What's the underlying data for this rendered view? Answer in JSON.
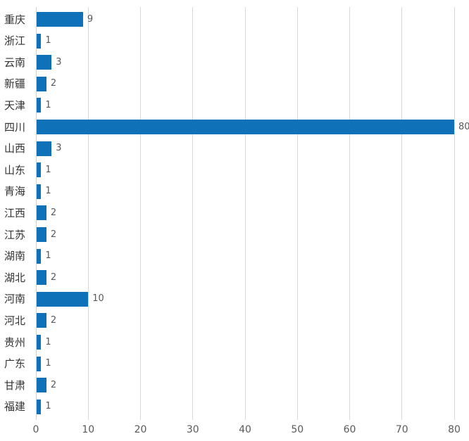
{
  "chart_data": {
    "type": "bar",
    "orientation": "horizontal",
    "title": "",
    "xlabel": "",
    "ylabel": "",
    "categories": [
      "重庆",
      "浙江",
      "云南",
      "新疆",
      "天津",
      "四川",
      "山西",
      "山东",
      "青海",
      "江西",
      "江苏",
      "湖南",
      "湖北",
      "河南",
      "河北",
      "贵州",
      "广东",
      "甘肃",
      "福建"
    ],
    "values": [
      9,
      1,
      3,
      2,
      1,
      80,
      3,
      1,
      1,
      2,
      2,
      1,
      2,
      10,
      2,
      1,
      1,
      2,
      1
    ],
    "data_labels": [
      "9",
      "1",
      "3",
      "2",
      "1",
      "80",
      "3",
      "1",
      "1",
      "2",
      "2",
      "1",
      "2",
      "10",
      "2",
      "1",
      "1",
      "2",
      "1"
    ],
    "x_ticks": [
      0,
      10,
      20,
      30,
      40,
      50,
      60,
      70,
      80
    ],
    "xlim": [
      0,
      80
    ],
    "grid": "vertical-only",
    "legend": "none",
    "colors": {
      "bar": "#0f72b9",
      "category_label": "#333333",
      "value_label": "#595959",
      "tick_label": "#595959",
      "gridline": "#d9d9d9",
      "background": "#ffffff"
    }
  }
}
